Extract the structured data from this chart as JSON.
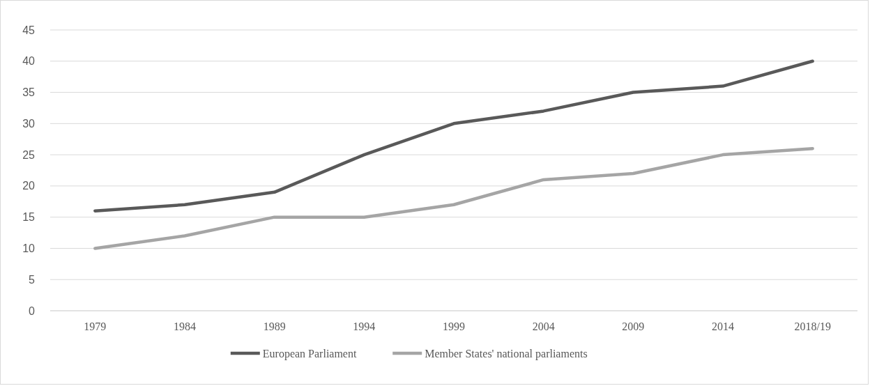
{
  "chart_data": {
    "type": "line",
    "categories": [
      "1979",
      "1984",
      "1989",
      "1994",
      "1999",
      "2004",
      "2009",
      "2014",
      "2018/19"
    ],
    "series": [
      {
        "name": "European Parliament",
        "color": "#595959",
        "values": [
          16,
          17,
          19,
          25,
          30,
          32,
          35,
          36,
          40
        ]
      },
      {
        "name": "Member States' national parliaments",
        "color": "#a5a5a5",
        "values": [
          10,
          12,
          15,
          15,
          17,
          21,
          22,
          25,
          26
        ]
      }
    ],
    "ylim": [
      0,
      45
    ],
    "yticks": [
      0,
      5,
      10,
      15,
      20,
      25,
      30,
      35,
      40,
      45
    ],
    "grid": "y",
    "legend": "bottom",
    "marker": "none",
    "line_style": "solid"
  }
}
